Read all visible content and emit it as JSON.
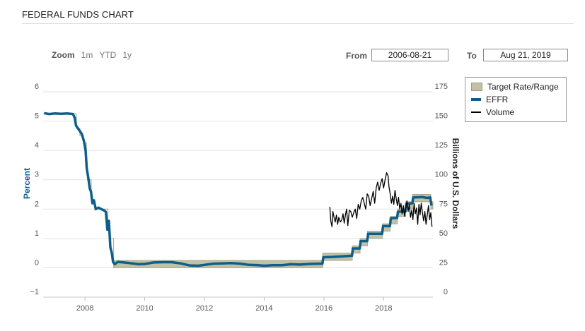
{
  "page": {
    "title": "FEDERAL FUNDS CHART"
  },
  "zoom": {
    "label": "Zoom",
    "options": [
      "1m",
      "YTD",
      "1y"
    ]
  },
  "range": {
    "from_label": "From",
    "from_value": "2006-08-21",
    "to_label": "To",
    "to_value": "Aug 21, 2019"
  },
  "legend": {
    "items": [
      {
        "label": "Target Rate/Range",
        "color": "#c2c1a4"
      },
      {
        "label": "EFFR",
        "color": "#0e5e8c"
      },
      {
        "label": "Volume",
        "color": "#000000"
      }
    ]
  },
  "chart_data": {
    "type": "line",
    "xlabel": "",
    "ylabel": "Percent",
    "y2label": "Billions of U.S. Dollars",
    "xlim": [
      2006.6,
      2019.65
    ],
    "ylim": [
      -1,
      6
    ],
    "y2lim": [
      0,
      175
    ],
    "x_ticks": [
      "2008",
      "2010",
      "2012",
      "2014",
      "2016",
      "2018"
    ],
    "y_ticks": [
      "−1",
      "0",
      "1",
      "2",
      "3",
      "4",
      "5",
      "6"
    ],
    "y2_ticks": [
      "0",
      "25",
      "50",
      "75",
      "100",
      "125",
      "150",
      "175"
    ],
    "grid": true,
    "series": [
      {
        "name": "Target Rate/Range",
        "color": "#c2c1a4",
        "upper": [
          [
            2006.6,
            5.25
          ],
          [
            2007.71,
            5.25
          ],
          [
            2007.71,
            4.75
          ],
          [
            2007.83,
            4.75
          ],
          [
            2007.83,
            4.5
          ],
          [
            2007.95,
            4.5
          ],
          [
            2007.95,
            4.25
          ],
          [
            2008.05,
            4.25
          ],
          [
            2008.05,
            3.5
          ],
          [
            2008.08,
            3.5
          ],
          [
            2008.08,
            3.0
          ],
          [
            2008.21,
            3.0
          ],
          [
            2008.21,
            2.25
          ],
          [
            2008.33,
            2.25
          ],
          [
            2008.33,
            2.0
          ],
          [
            2008.77,
            2.0
          ],
          [
            2008.77,
            1.5
          ],
          [
            2008.83,
            1.5
          ],
          [
            2008.83,
            1.0
          ],
          [
            2008.96,
            1.0
          ],
          [
            2008.96,
            0.25
          ],
          [
            2015.96,
            0.25
          ],
          [
            2015.96,
            0.5
          ],
          [
            2016.95,
            0.5
          ],
          [
            2016.95,
            0.75
          ],
          [
            2017.21,
            0.75
          ],
          [
            2017.21,
            1.0
          ],
          [
            2017.46,
            1.0
          ],
          [
            2017.46,
            1.25
          ],
          [
            2017.96,
            1.25
          ],
          [
            2017.96,
            1.5
          ],
          [
            2018.22,
            1.5
          ],
          [
            2018.22,
            1.75
          ],
          [
            2018.46,
            1.75
          ],
          [
            2018.46,
            2.0
          ],
          [
            2018.74,
            2.0
          ],
          [
            2018.74,
            2.25
          ],
          [
            2018.97,
            2.25
          ],
          [
            2018.97,
            2.5
          ],
          [
            2019.58,
            2.5
          ],
          [
            2019.58,
            2.25
          ],
          [
            2019.65,
            2.25
          ]
        ],
        "lower": [
          [
            2006.6,
            5.25
          ],
          [
            2007.71,
            5.25
          ],
          [
            2007.71,
            4.75
          ],
          [
            2007.83,
            4.75
          ],
          [
            2007.83,
            4.5
          ],
          [
            2007.95,
            4.5
          ],
          [
            2007.95,
            4.25
          ],
          [
            2008.05,
            4.25
          ],
          [
            2008.05,
            3.5
          ],
          [
            2008.08,
            3.5
          ],
          [
            2008.08,
            3.0
          ],
          [
            2008.21,
            3.0
          ],
          [
            2008.21,
            2.25
          ],
          [
            2008.33,
            2.25
          ],
          [
            2008.33,
            2.0
          ],
          [
            2008.77,
            2.0
          ],
          [
            2008.77,
            1.5
          ],
          [
            2008.83,
            1.5
          ],
          [
            2008.83,
            1.0
          ],
          [
            2008.96,
            1.0
          ],
          [
            2008.96,
            0.0
          ],
          [
            2015.96,
            0.0
          ],
          [
            2015.96,
            0.25
          ],
          [
            2016.95,
            0.25
          ],
          [
            2016.95,
            0.5
          ],
          [
            2017.21,
            0.5
          ],
          [
            2017.21,
            0.75
          ],
          [
            2017.46,
            0.75
          ],
          [
            2017.46,
            1.0
          ],
          [
            2017.96,
            1.0
          ],
          [
            2017.96,
            1.25
          ],
          [
            2018.22,
            1.25
          ],
          [
            2018.22,
            1.5
          ],
          [
            2018.46,
            1.5
          ],
          [
            2018.46,
            1.75
          ],
          [
            2018.74,
            1.75
          ],
          [
            2018.74,
            2.0
          ],
          [
            2018.97,
            2.0
          ],
          [
            2018.97,
            2.25
          ],
          [
            2019.58,
            2.25
          ],
          [
            2019.58,
            2.0
          ],
          [
            2019.65,
            2.0
          ]
        ]
      },
      {
        "name": "EFFR",
        "color": "#0e5e8c",
        "points": [
          [
            2006.63,
            5.27
          ],
          [
            2006.8,
            5.24
          ],
          [
            2007.0,
            5.26
          ],
          [
            2007.2,
            5.25
          ],
          [
            2007.4,
            5.26
          ],
          [
            2007.6,
            5.24
          ],
          [
            2007.66,
            5.1
          ],
          [
            2007.7,
            4.85
          ],
          [
            2007.8,
            4.7
          ],
          [
            2007.9,
            4.55
          ],
          [
            2007.97,
            4.3
          ],
          [
            2008.02,
            4.0
          ],
          [
            2008.06,
            3.4
          ],
          [
            2008.12,
            3.0
          ],
          [
            2008.16,
            2.7
          ],
          [
            2008.2,
            2.6
          ],
          [
            2008.25,
            2.2
          ],
          [
            2008.3,
            2.3
          ],
          [
            2008.36,
            2.0
          ],
          [
            2008.45,
            2.05
          ],
          [
            2008.55,
            2.0
          ],
          [
            2008.65,
            1.95
          ],
          [
            2008.7,
            1.9
          ],
          [
            2008.75,
            1.3
          ],
          [
            2008.8,
            1.6
          ],
          [
            2008.85,
            0.7
          ],
          [
            2008.9,
            0.5
          ],
          [
            2008.94,
            0.2
          ],
          [
            2009.0,
            0.12
          ],
          [
            2009.1,
            0.2
          ],
          [
            2009.3,
            0.18
          ],
          [
            2009.5,
            0.16
          ],
          [
            2009.8,
            0.12
          ],
          [
            2010.0,
            0.13
          ],
          [
            2010.3,
            0.18
          ],
          [
            2010.6,
            0.19
          ],
          [
            2010.9,
            0.19
          ],
          [
            2011.2,
            0.15
          ],
          [
            2011.5,
            0.08
          ],
          [
            2011.8,
            0.07
          ],
          [
            2012.0,
            0.1
          ],
          [
            2012.3,
            0.14
          ],
          [
            2012.6,
            0.15
          ],
          [
            2012.9,
            0.16
          ],
          [
            2013.2,
            0.14
          ],
          [
            2013.5,
            0.1
          ],
          [
            2013.8,
            0.09
          ],
          [
            2014.0,
            0.07
          ],
          [
            2014.3,
            0.09
          ],
          [
            2014.6,
            0.09
          ],
          [
            2014.9,
            0.12
          ],
          [
            2015.2,
            0.11
          ],
          [
            2015.5,
            0.13
          ],
          [
            2015.8,
            0.14
          ],
          [
            2015.95,
            0.14
          ],
          [
            2015.98,
            0.36
          ],
          [
            2016.3,
            0.37
          ],
          [
            2016.6,
            0.39
          ],
          [
            2016.94,
            0.41
          ],
          [
            2016.97,
            0.66
          ],
          [
            2017.2,
            0.66
          ],
          [
            2017.23,
            0.91
          ],
          [
            2017.45,
            0.91
          ],
          [
            2017.48,
            1.16
          ],
          [
            2017.95,
            1.16
          ],
          [
            2017.98,
            1.42
          ],
          [
            2018.21,
            1.42
          ],
          [
            2018.24,
            1.69
          ],
          [
            2018.45,
            1.7
          ],
          [
            2018.48,
            1.91
          ],
          [
            2018.73,
            1.92
          ],
          [
            2018.76,
            2.18
          ],
          [
            2018.96,
            2.2
          ],
          [
            2018.99,
            2.4
          ],
          [
            2019.3,
            2.41
          ],
          [
            2019.45,
            2.38
          ],
          [
            2019.56,
            2.4
          ],
          [
            2019.6,
            2.12
          ]
        ]
      },
      {
        "name": "Volume",
        "color": "#000000",
        "points": [
          [
            2016.2,
            77
          ],
          [
            2016.23,
            65
          ],
          [
            2016.27,
            60
          ],
          [
            2016.3,
            73
          ],
          [
            2016.34,
            68
          ],
          [
            2016.38,
            64
          ],
          [
            2016.42,
            70
          ],
          [
            2016.46,
            62
          ],
          [
            2016.5,
            68
          ],
          [
            2016.55,
            64
          ],
          [
            2016.6,
            66
          ],
          [
            2016.64,
            71
          ],
          [
            2016.68,
            63
          ],
          [
            2016.72,
            70
          ],
          [
            2016.76,
            75
          ],
          [
            2016.8,
            61
          ],
          [
            2016.85,
            74
          ],
          [
            2016.9,
            73
          ],
          [
            2016.95,
            68
          ],
          [
            2017.0,
            72
          ],
          [
            2017.05,
            75
          ],
          [
            2017.1,
            67
          ],
          [
            2017.15,
            79
          ],
          [
            2017.2,
            75
          ],
          [
            2017.25,
            82
          ],
          [
            2017.3,
            85
          ],
          [
            2017.35,
            80
          ],
          [
            2017.4,
            75
          ],
          [
            2017.45,
            88
          ],
          [
            2017.5,
            86
          ],
          [
            2017.55,
            78
          ],
          [
            2017.6,
            84
          ],
          [
            2017.65,
            90
          ],
          [
            2017.7,
            80
          ],
          [
            2017.75,
            93
          ],
          [
            2017.8,
            98
          ],
          [
            2017.85,
            91
          ],
          [
            2017.9,
            97
          ],
          [
            2017.95,
            101
          ],
          [
            2018.0,
            93
          ],
          [
            2018.05,
            100
          ],
          [
            2018.1,
            106
          ],
          [
            2018.15,
            103
          ],
          [
            2018.18,
            94
          ],
          [
            2018.22,
            88
          ],
          [
            2018.26,
            80
          ],
          [
            2018.3,
            86
          ],
          [
            2018.34,
            79
          ],
          [
            2018.38,
            91
          ],
          [
            2018.42,
            84
          ],
          [
            2018.46,
            78
          ],
          [
            2018.5,
            85
          ],
          [
            2018.54,
            75
          ],
          [
            2018.58,
            80
          ],
          [
            2018.62,
            71
          ],
          [
            2018.66,
            78
          ],
          [
            2018.7,
            69
          ],
          [
            2018.74,
            76
          ],
          [
            2018.78,
            82
          ],
          [
            2018.82,
            73
          ],
          [
            2018.86,
            79
          ],
          [
            2018.9,
            68
          ],
          [
            2018.94,
            74
          ],
          [
            2018.98,
            66
          ],
          [
            2019.02,
            80
          ],
          [
            2019.06,
            71
          ],
          [
            2019.1,
            76
          ],
          [
            2019.14,
            62
          ],
          [
            2019.18,
            79
          ],
          [
            2019.22,
            70
          ],
          [
            2019.26,
            80
          ],
          [
            2019.3,
            72
          ],
          [
            2019.34,
            65
          ],
          [
            2019.38,
            73
          ],
          [
            2019.42,
            62
          ],
          [
            2019.46,
            70
          ],
          [
            2019.5,
            78
          ],
          [
            2019.54,
            66
          ],
          [
            2019.58,
            72
          ],
          [
            2019.62,
            60
          ]
        ]
      }
    ]
  }
}
